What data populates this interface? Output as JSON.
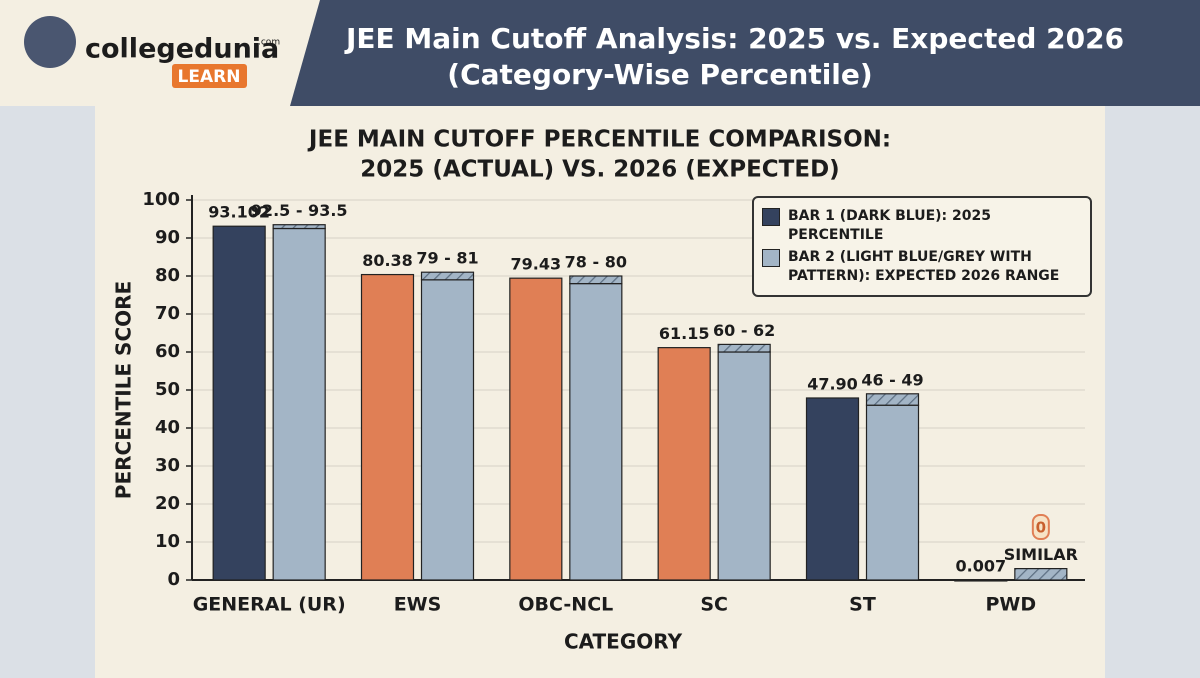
{
  "header": {
    "brand": "collegedunia",
    "brand_suffix": ".com",
    "badge": "LEARN",
    "title": "JEE Main Cutoff Analysis: 2025 vs. Expected 2026",
    "subtitle": "(Category-Wise Percentile)"
  },
  "chart_data": {
    "type": "bar",
    "title": [
      "JEE MAIN CUTOFF PERCENTILE COMPARISON:",
      "2025 (ACTUAL) VS. 2026 (EXPECTED)"
    ],
    "y_label": "PERCENTILE SCORE",
    "x_label": "CATEGORY",
    "categories": [
      "GENERAL (UR)",
      "EWS",
      "OBC-NCL",
      "SC",
      "ST",
      "PWD"
    ],
    "series": [
      {
        "name": "BAR 1 (DARK BLUE): 2025 PERCENTILE",
        "color": "#34425e",
        "colors": [
          "#34425e",
          "#e07f55",
          "#e07f55",
          "#e07f55",
          "#34425e",
          "#34425e"
        ],
        "values": [
          93.102,
          80.38,
          79.43,
          61.15,
          47.9,
          0.007
        ],
        "value_labels": [
          "93.102",
          "80.38",
          "79.43",
          "61.15",
          "47.90",
          "0.007"
        ]
      },
      {
        "name": "BAR 2 (LIGHT BLUE/GREY WITH PATTERN): EXPECTED 2026 RANGE",
        "color": "#a3b5c6",
        "low": [
          92.5,
          79,
          78,
          60,
          46,
          0
        ],
        "high": [
          93.5,
          81,
          80,
          62,
          49,
          3
        ],
        "value_labels": [
          "92.5 - 93.5",
          "79 - 81",
          "78 - 80",
          "60 - 62",
          "46 - 49",
          "SIMILAR"
        ]
      }
    ],
    "annotation": "0",
    "ylim": [
      0,
      100
    ],
    "yticks": [
      0,
      10,
      20,
      30,
      40,
      50,
      60,
      70,
      80,
      90,
      100
    ],
    "grid": true,
    "legend": "top-right"
  }
}
